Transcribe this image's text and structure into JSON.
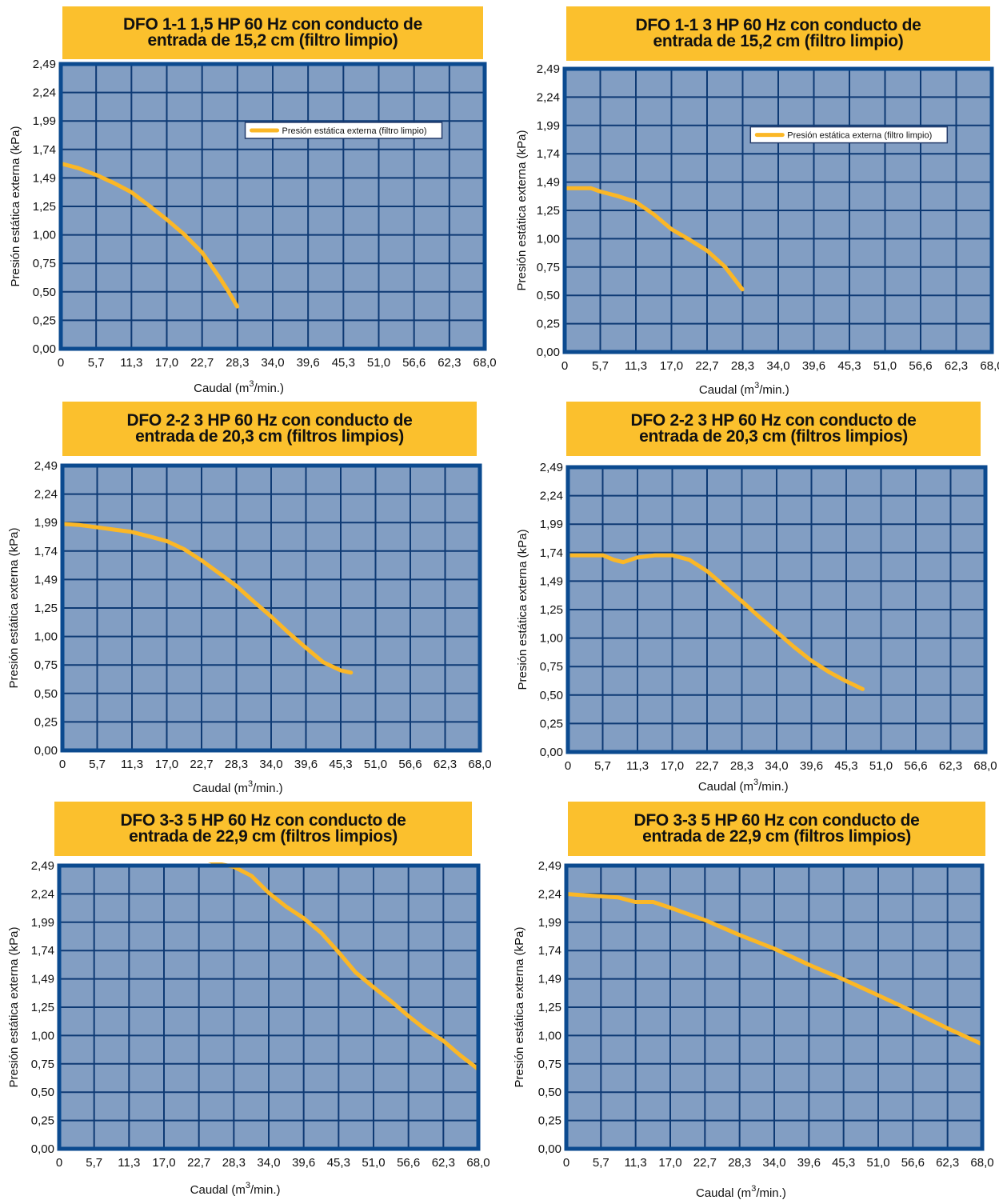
{
  "chart_data": [
    {
      "type": "line",
      "title_lines": [
        "DFO 1-1 1,5 HP 60 Hz con conducto de",
        "entrada de 15,2 cm (filtro limpio)"
      ],
      "xlabel": "Caudal (m",
      "xlabel_sup": "3",
      "xlabel_tail": "/min.)",
      "ylabel": "Presión estática externa (kPa)",
      "x_ticks": [
        "0",
        "5,7",
        "11,3",
        "17,0",
        "22,7",
        "28,3",
        "34,0",
        "39,6",
        "45,3",
        "51,0",
        "56,6",
        "62,3",
        "68,0"
      ],
      "y_ticks": [
        "0,00",
        "0,25",
        "0,50",
        "0,75",
        "1,00",
        "1,25",
        "1,49",
        "1,74",
        "1,99",
        "2,24",
        "2,49"
      ],
      "xlim": [
        0,
        68.0
      ],
      "ylim": [
        0,
        2.49
      ],
      "grid": true,
      "legend": "Presión estática externa (filtro limpio)",
      "legend_position": "top-right",
      "series": [
        {
          "name": "Presión estática externa (filtro limpio)",
          "x": [
            0,
            2.8,
            5.7,
            8.5,
            11.3,
            14.2,
            17.0,
            19.8,
            22.7,
            24.1,
            25.5,
            26.9,
            28.3
          ],
          "y": [
            1.62,
            1.58,
            1.52,
            1.45,
            1.37,
            1.25,
            1.13,
            1.0,
            0.84,
            0.73,
            0.62,
            0.5,
            0.37
          ]
        }
      ]
    },
    {
      "type": "line",
      "title_lines": [
        "DFO 1-1 3 HP 60 Hz con conducto de",
        "entrada de 15,2 cm (filtro limpio)"
      ],
      "xlabel": "Caudal (m",
      "xlabel_sup": "3",
      "xlabel_tail": "/min.)",
      "ylabel": "Presión estática externa (kPa)",
      "x_ticks": [
        "0",
        "5,7",
        "11,3",
        "17,0",
        "22,7",
        "28,3",
        "34,0",
        "39,6",
        "45,3",
        "51,0",
        "56,6",
        "62,3",
        "68,0"
      ],
      "y_ticks": [
        "0,00",
        "0,25",
        "0,50",
        "0,75",
        "1,00",
        "1,25",
        "1,49",
        "1,74",
        "1,99",
        "2,24",
        "2,49"
      ],
      "xlim": [
        0,
        68.0
      ],
      "ylim": [
        0,
        2.49
      ],
      "grid": true,
      "legend": "Presión estática externa (filtro limpio)",
      "legend_position": "top-right",
      "series": [
        {
          "name": "Presión estática externa (filtro limpio)",
          "x": [
            0,
            2.8,
            4.2,
            5.7,
            8.5,
            11.3,
            14.2,
            17.0,
            19.8,
            22.7,
            25.5,
            28.3
          ],
          "y": [
            1.44,
            1.44,
            1.44,
            1.41,
            1.37,
            1.32,
            1.21,
            1.08,
            0.99,
            0.89,
            0.75,
            0.55
          ]
        }
      ]
    },
    {
      "type": "line",
      "title_lines": [
        "DFO 2-2 3 HP 60 Hz con conducto de",
        "entrada de 20,3 cm (filtros limpios)"
      ],
      "xlabel": "Caudal (m",
      "xlabel_sup": "3",
      "xlabel_tail": "/min.)",
      "ylabel": "Presión estática externa (kPa)",
      "x_ticks": [
        "0",
        "5,7",
        "11,3",
        "17,0",
        "22,7",
        "28,3",
        "34,0",
        "39,6",
        "45,3",
        "51,0",
        "56,6",
        "62,3",
        "68,0"
      ],
      "y_ticks": [
        "0,00",
        "0,25",
        "0,50",
        "0,75",
        "1,00",
        "1,25",
        "1,49",
        "1,74",
        "1,99",
        "2,24",
        "2,49"
      ],
      "xlim": [
        0,
        68.0
      ],
      "ylim": [
        0,
        2.49
      ],
      "grid": true,
      "legend": "",
      "series": [
        {
          "name": "",
          "x": [
            0,
            2.8,
            5.7,
            8.5,
            11.3,
            14.2,
            17.0,
            19.8,
            22.7,
            25.5,
            28.3,
            31.2,
            34.0,
            36.8,
            39.6,
            42.5,
            45.3,
            47.0
          ],
          "y": [
            1.98,
            1.97,
            1.95,
            1.93,
            1.91,
            1.87,
            1.83,
            1.76,
            1.66,
            1.55,
            1.44,
            1.3,
            1.17,
            1.03,
            0.9,
            0.77,
            0.7,
            0.68
          ]
        }
      ]
    },
    {
      "type": "line",
      "title_lines": [
        "DFO 2-2 3 HP 60 Hz con conducto de",
        "entrada de 20,3 cm (filtros limpios)"
      ],
      "xlabel": "Caudal (m",
      "xlabel_sup": "3",
      "xlabel_tail": "/min.)",
      "ylabel": "Presión estática externa (kPa)",
      "x_ticks": [
        "0",
        "5,7",
        "11,3",
        "17,0",
        "22,7",
        "28,3",
        "34,0",
        "39,6",
        "45,3",
        "51,0",
        "56,6",
        "62,3",
        "68,0"
      ],
      "y_ticks": [
        "0,00",
        "0,25",
        "0,50",
        "0,75",
        "1,00",
        "1,25",
        "1,49",
        "1,74",
        "1,99",
        "2,24",
        "2,49"
      ],
      "xlim": [
        0,
        68.0
      ],
      "ylim": [
        0,
        2.49
      ],
      "grid": true,
      "legend": "",
      "series": [
        {
          "name": "",
          "x": [
            0,
            2.8,
            5.7,
            7.5,
            9.0,
            11.3,
            14.2,
            17.0,
            19.8,
            22.7,
            25.5,
            28.3,
            31.2,
            34.0,
            36.8,
            39.6,
            42.5,
            45.3,
            48.0
          ],
          "y": [
            1.72,
            1.72,
            1.72,
            1.68,
            1.66,
            1.7,
            1.72,
            1.72,
            1.68,
            1.58,
            1.45,
            1.32,
            1.18,
            1.05,
            0.92,
            0.8,
            0.7,
            0.62,
            0.55
          ]
        }
      ]
    },
    {
      "type": "line",
      "title_lines": [
        "DFO 3-3 5 HP 60 Hz con conducto de",
        "entrada de 22,9 cm (filtros limpios)"
      ],
      "xlabel": "Caudal (m",
      "xlabel_sup": "3",
      "xlabel_tail": "/min.)",
      "ylabel": "Presión estática externa (kPa)",
      "x_ticks": [
        "0",
        "5,7",
        "11,3",
        "17,0",
        "22,7",
        "28,3",
        "34,0",
        "39,6",
        "45,3",
        "51,0",
        "56,6",
        "62,3",
        "68,0"
      ],
      "y_ticks": [
        "0,00",
        "0,25",
        "0,50",
        "0,75",
        "1,00",
        "1,25",
        "1,49",
        "1,74",
        "1,99",
        "2,24",
        "2,49"
      ],
      "xlim": [
        0,
        68.0
      ],
      "ylim": [
        0,
        2.49
      ],
      "grid": true,
      "legend": "",
      "series": [
        {
          "name": "",
          "x": [
            23.5,
            25.5,
            28.3,
            31.2,
            34.0,
            36.8,
            39.6,
            42.5,
            45.3,
            48.1,
            51.0,
            53.8,
            56.6,
            59.4,
            62.3,
            65.1,
            68.0
          ],
          "y": [
            2.55,
            2.51,
            2.48,
            2.4,
            2.25,
            2.13,
            2.03,
            1.9,
            1.73,
            1.55,
            1.42,
            1.3,
            1.17,
            1.05,
            0.95,
            0.82,
            0.7
          ]
        }
      ]
    },
    {
      "type": "line",
      "title_lines": [
        "DFO 3-3 5 HP 60 Hz con conducto de",
        "entrada de 22,9 cm (filtros limpios)"
      ],
      "xlabel": "Caudal (m",
      "xlabel_sup": "3",
      "xlabel_tail": "/min.)",
      "ylabel": "Presión estática externa (kPa)",
      "x_ticks": [
        "0",
        "5,7",
        "11,3",
        "17,0",
        "22,7",
        "28,3",
        "34,0",
        "39,6",
        "45,3",
        "51,0",
        "56,6",
        "62,3",
        "68,0"
      ],
      "y_ticks": [
        "0,00",
        "0,25",
        "0,50",
        "0,75",
        "1,00",
        "1,25",
        "1,49",
        "1,74",
        "1,99",
        "2,24",
        "2,49"
      ],
      "xlim": [
        0,
        68.0
      ],
      "ylim": [
        0,
        2.49
      ],
      "grid": true,
      "legend": "",
      "series": [
        {
          "name": "",
          "x": [
            0,
            2.8,
            5.7,
            8.5,
            11.3,
            14.2,
            17.0,
            22.7,
            28.3,
            34.0,
            39.6,
            45.3,
            51.0,
            56.6,
            62.3,
            68.0
          ],
          "y": [
            2.24,
            2.23,
            2.22,
            2.21,
            2.17,
            2.17,
            2.12,
            2.01,
            1.88,
            1.76,
            1.62,
            1.49,
            1.35,
            1.21,
            1.06,
            0.92
          ]
        }
      ]
    }
  ],
  "colors": {
    "plot_bg": "#829ec3",
    "frame": "#0b4a8f",
    "grid": "#0e3a74",
    "curve": "#fbb726",
    "title_bg": "#fbc02d"
  }
}
